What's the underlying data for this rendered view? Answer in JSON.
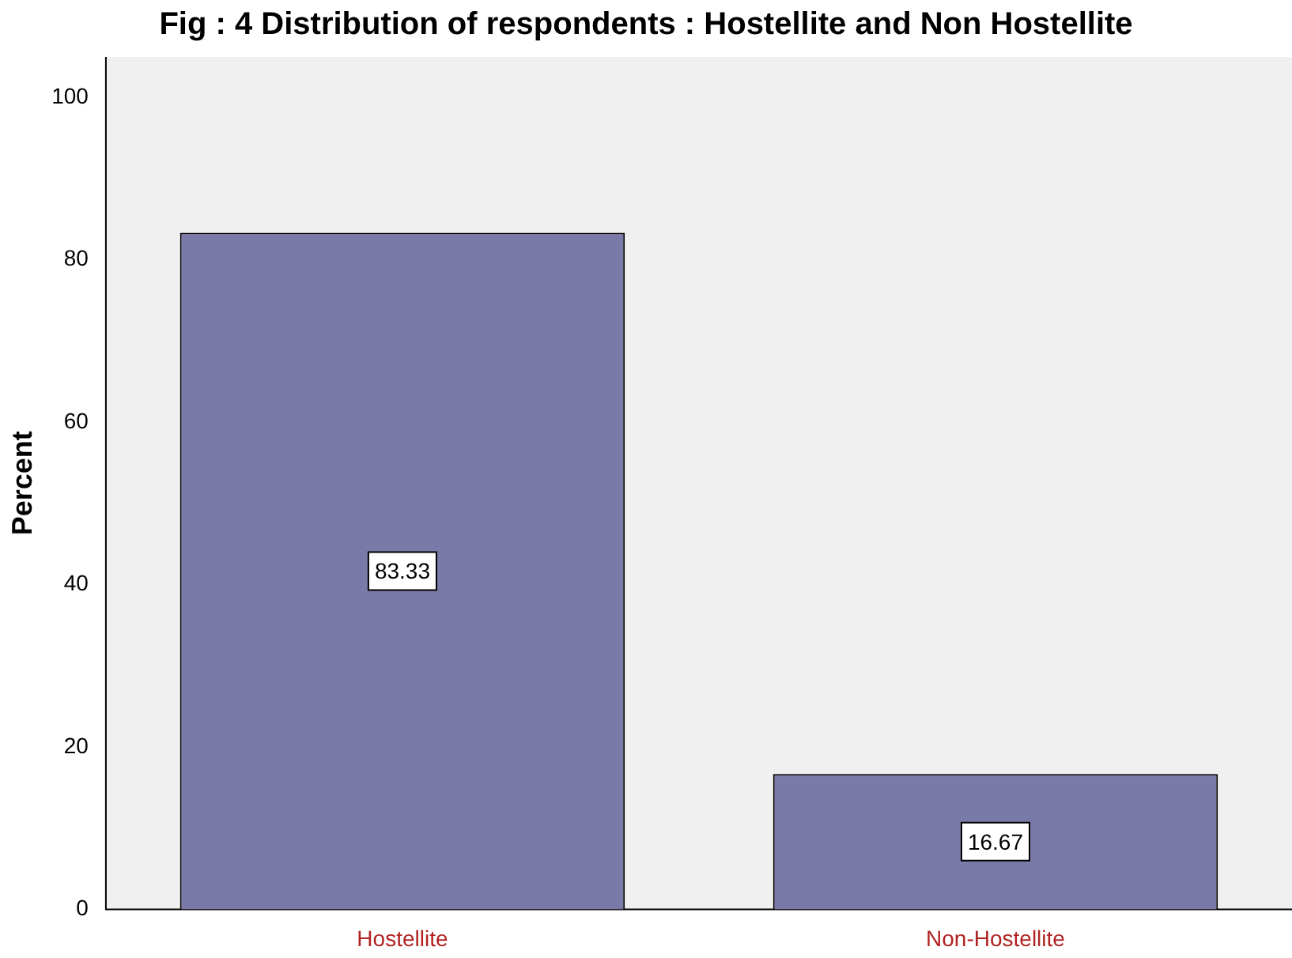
{
  "chart_data": {
    "type": "bar",
    "title": "Fig : 4 Distribution of respondents : Hostellite and Non Hostellite",
    "ylabel": "Percent",
    "categories": [
      "Hostellite",
      "Non-Hostellite"
    ],
    "values": [
      83.33,
      16.67
    ],
    "color": "#7a7aa8",
    "ylim": [
      0,
      105
    ],
    "yticks": [
      0,
      20,
      40,
      60,
      80,
      100
    ],
    "grid": false,
    "legend": false,
    "data_labels": true
  }
}
